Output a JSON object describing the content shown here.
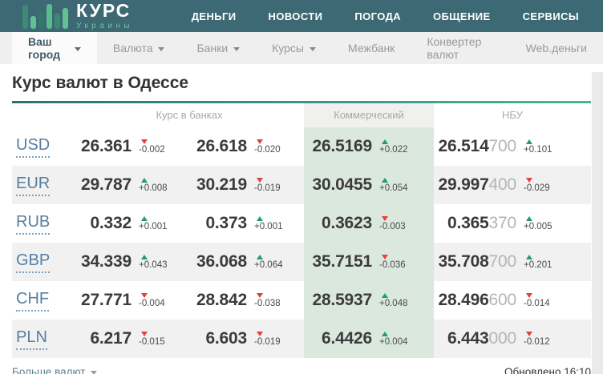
{
  "topnav": {
    "logo": {
      "title": "КУРС",
      "subtitle": "Украины",
      "icon": "bar-chart-logo-icon"
    },
    "items": [
      {
        "label": "ДЕНЬГИ"
      },
      {
        "label": "НОВОСТИ"
      },
      {
        "label": "ПОГОДА"
      },
      {
        "label": "ОБЩЕНИЕ"
      },
      {
        "label": "СЕРВИСЫ"
      }
    ]
  },
  "subnav": {
    "items": [
      {
        "label": "Ваш город",
        "caret": true,
        "active": true
      },
      {
        "label": "Валюта",
        "caret": true,
        "active": false
      },
      {
        "label": "Банки",
        "caret": true,
        "active": false
      },
      {
        "label": "Курсы",
        "caret": true,
        "active": false
      },
      {
        "label": "Межбанк",
        "caret": false,
        "active": false
      },
      {
        "label": "Конвертер валют",
        "caret": false,
        "active": false
      },
      {
        "label": "Web.деньги",
        "caret": false,
        "active": false
      }
    ]
  },
  "page_title": "Курс валют в Одессе",
  "colors": {
    "topnav_bg": "#3c6973",
    "up_green": "#1f9d74",
    "down_red": "#e2413c",
    "commercial_col_bg": "#dbe8de",
    "link_blue": "#577fa0",
    "table_topline": "#49b598"
  },
  "table": {
    "headers": {
      "banks": "Курс в банках",
      "commercial": "Коммерческий",
      "nbu": "НБУ"
    },
    "rows": [
      {
        "code": "USD",
        "bank_buy": {
          "value": "26.361",
          "dir": "down",
          "change": "-0.002"
        },
        "bank_sell": {
          "value": "26.618",
          "dir": "down",
          "change": "-0.020"
        },
        "commercial": {
          "value": "26.5169",
          "dir": "up",
          "change": "+0.022"
        },
        "nbu": {
          "value_main": "26.514",
          "value_tail": "700",
          "dir": "up",
          "change": "+0.101"
        }
      },
      {
        "code": "EUR",
        "bank_buy": {
          "value": "29.787",
          "dir": "up",
          "change": "+0.008"
        },
        "bank_sell": {
          "value": "30.219",
          "dir": "down",
          "change": "-0.019"
        },
        "commercial": {
          "value": "30.0455",
          "dir": "up",
          "change": "+0.054"
        },
        "nbu": {
          "value_main": "29.997",
          "value_tail": "400",
          "dir": "down",
          "change": "-0.029"
        }
      },
      {
        "code": "RUB",
        "bank_buy": {
          "value": "0.332",
          "dir": "up",
          "change": "+0.001"
        },
        "bank_sell": {
          "value": "0.373",
          "dir": "up",
          "change": "+0.001"
        },
        "commercial": {
          "value": "0.3623",
          "dir": "down",
          "change": "-0.003"
        },
        "nbu": {
          "value_main": "0.365",
          "value_tail": "370",
          "dir": "up",
          "change": "+0.005"
        }
      },
      {
        "code": "GBP",
        "bank_buy": {
          "value": "34.339",
          "dir": "up",
          "change": "+0.043"
        },
        "bank_sell": {
          "value": "36.068",
          "dir": "up",
          "change": "+0.064"
        },
        "commercial": {
          "value": "35.7151",
          "dir": "down",
          "change": "-0.036"
        },
        "nbu": {
          "value_main": "35.708",
          "value_tail": "700",
          "dir": "up",
          "change": "+0.201"
        }
      },
      {
        "code": "CHF",
        "bank_buy": {
          "value": "27.771",
          "dir": "down",
          "change": "-0.004"
        },
        "bank_sell": {
          "value": "28.842",
          "dir": "down",
          "change": "-0.038"
        },
        "commercial": {
          "value": "28.5937",
          "dir": "up",
          "change": "+0.048"
        },
        "nbu": {
          "value_main": "28.496",
          "value_tail": "600",
          "dir": "down",
          "change": "-0.014"
        }
      },
      {
        "code": "PLN",
        "bank_buy": {
          "value": "6.217",
          "dir": "down",
          "change": "-0.015"
        },
        "bank_sell": {
          "value": "6.603",
          "dir": "down",
          "change": "-0.019"
        },
        "commercial": {
          "value": "6.4426",
          "dir": "up",
          "change": "+0.004"
        },
        "nbu": {
          "value_main": "6.443",
          "value_tail": "000",
          "dir": "down",
          "change": "-0.012"
        }
      }
    ]
  },
  "footer": {
    "more_label": "Больше валют",
    "updated_label": "Обновлено 16:10"
  }
}
